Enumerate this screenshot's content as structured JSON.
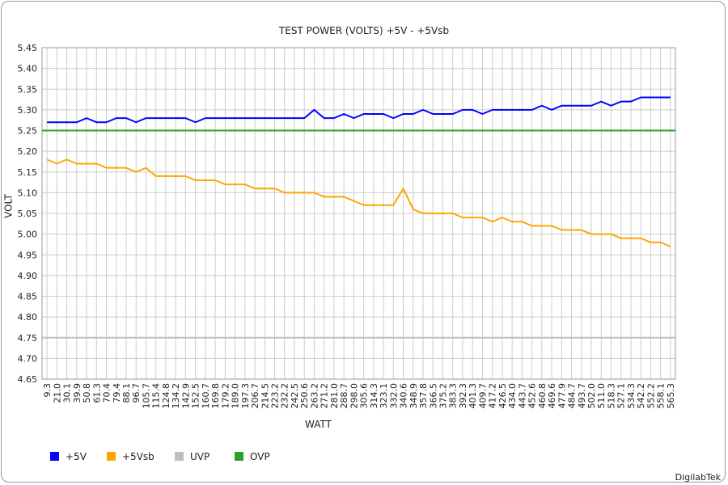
{
  "chart_data": {
    "type": "line",
    "title": "TEST POWER (VOLTS) +5V - +5Vsb",
    "xlabel": "WATT",
    "ylabel": "VOLT",
    "ylim": [
      4.65,
      5.45
    ],
    "y_ticks": [
      "4.65",
      "4.70",
      "4.75",
      "4.80",
      "4.85",
      "4.90",
      "4.95",
      "5.00",
      "5.05",
      "5.10",
      "5.15",
      "5.20",
      "5.25",
      "5.30",
      "5.35",
      "5.40",
      "5.45"
    ],
    "categories": [
      "9.3",
      "21.0",
      "30.1",
      "39.9",
      "50.8",
      "61.3",
      "70.4",
      "79.4",
      "88.1",
      "96.7",
      "105.7",
      "115.4",
      "124.8",
      "134.2",
      "142.9",
      "152.5",
      "160.7",
      "169.8",
      "179.2",
      "189.0",
      "197.3",
      "206.7",
      "214.5",
      "223.2",
      "232.2",
      "242.5",
      "250.6",
      "263.2",
      "271.2",
      "281.0",
      "288.7",
      "298.0",
      "305.6",
      "314.3",
      "323.1",
      "332.0",
      "340.6",
      "348.9",
      "357.8",
      "366.5",
      "375.2",
      "383.3",
      "392.3",
      "401.3",
      "409.7",
      "417.2",
      "426.5",
      "434.0",
      "443.7",
      "452.6",
      "460.8",
      "469.6",
      "477.9",
      "484.7",
      "493.7",
      "502.0",
      "511.0",
      "518.3",
      "527.1",
      "534.3",
      "542.2",
      "552.2",
      "558.1",
      "565.3"
    ],
    "series": [
      {
        "name": "+5V",
        "color": "#0000ff",
        "values": [
          5.27,
          5.27,
          5.27,
          5.27,
          5.28,
          5.27,
          5.27,
          5.28,
          5.28,
          5.27,
          5.28,
          5.28,
          5.28,
          5.28,
          5.28,
          5.27,
          5.28,
          5.28,
          5.28,
          5.28,
          5.28,
          5.28,
          5.28,
          5.28,
          5.28,
          5.28,
          5.28,
          5.3,
          5.28,
          5.28,
          5.29,
          5.28,
          5.29,
          5.29,
          5.29,
          5.28,
          5.29,
          5.29,
          5.3,
          5.29,
          5.29,
          5.29,
          5.3,
          5.3,
          5.29,
          5.3,
          5.3,
          5.3,
          5.3,
          5.3,
          5.31,
          5.3,
          5.31,
          5.31,
          5.31,
          5.31,
          5.32,
          5.31,
          5.32,
          5.32,
          5.33,
          5.33,
          5.33,
          5.33
        ]
      },
      {
        "name": "+5Vsb",
        "color": "#ffa500",
        "values": [
          5.18,
          5.17,
          5.18,
          5.17,
          5.17,
          5.17,
          5.16,
          5.16,
          5.16,
          5.15,
          5.16,
          5.14,
          5.14,
          5.14,
          5.14,
          5.13,
          5.13,
          5.13,
          5.12,
          5.12,
          5.12,
          5.11,
          5.11,
          5.11,
          5.1,
          5.1,
          5.1,
          5.1,
          5.09,
          5.09,
          5.09,
          5.08,
          5.07,
          5.07,
          5.07,
          5.07,
          5.11,
          5.06,
          5.05,
          5.05,
          5.05,
          5.05,
          5.04,
          5.04,
          5.04,
          5.03,
          5.04,
          5.03,
          5.03,
          5.02,
          5.02,
          5.02,
          5.01,
          5.01,
          5.01,
          5.0,
          5.0,
          5.0,
          4.99,
          4.99,
          4.99,
          4.98,
          4.98,
          4.97
        ]
      },
      {
        "name": "UVP",
        "color": "#bfbfbf",
        "constant": 4.75
      },
      {
        "name": "OVP",
        "color": "#2ca02c",
        "constant": 5.25
      }
    ],
    "grid": true,
    "legend_position": "bottom-left"
  },
  "credit": "DigilabTek"
}
